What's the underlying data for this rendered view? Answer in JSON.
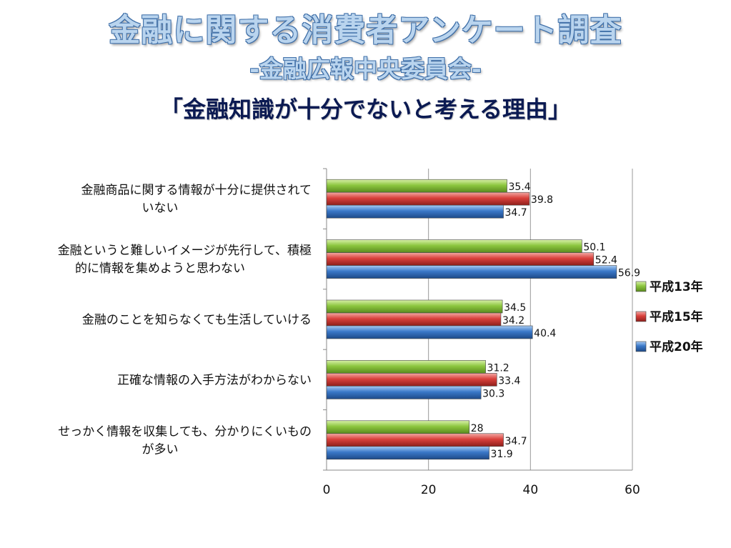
{
  "slide": {
    "title": "金融に関する消費者アンケート調査",
    "subtitle": "-金融広報中央委員会-",
    "heading": "「金融知識が十分でないと考える理由」"
  },
  "chart_data": {
    "type": "bar",
    "orientation": "horizontal",
    "categories": [
      [
        "金融商品に関する情報が十分に提供されて",
        "いない"
      ],
      [
        "金融というと難しいイメージが先行して、積極",
        "的に情報を集めようと思わない"
      ],
      [
        "金融のことを知らなくても生活していける"
      ],
      [
        "正確な情報の入手方法がわからない"
      ],
      [
        "せっかく情報を収集しても、分かりにくいもの",
        "が多い"
      ]
    ],
    "series": [
      {
        "name": "平成13年",
        "values": [
          35.4,
          50.1,
          34.5,
          31.2,
          28
        ],
        "color": "#8cc63f"
      },
      {
        "name": "平成15年",
        "values": [
          39.8,
          52.4,
          34.2,
          33.4,
          34.7
        ],
        "color": "#d9403b"
      },
      {
        "name": "平成20年",
        "values": [
          34.7,
          56.9,
          40.4,
          30.3,
          31.9
        ],
        "color": "#3a78c8"
      }
    ],
    "xlim": [
      0,
      60
    ],
    "xticks": [
      0,
      20,
      40,
      60
    ],
    "grid": true,
    "legend": "right"
  }
}
